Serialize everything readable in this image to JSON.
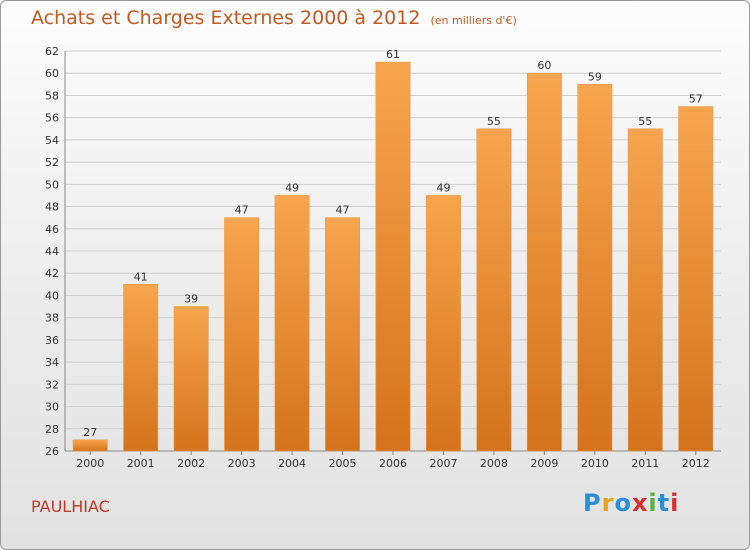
{
  "header": {
    "title": "Achats et Charges Externes 2000 à 2012",
    "unit": "(en milliers d'€)"
  },
  "footer": {
    "commune": "PAULHIAC",
    "logo_letters": [
      "P",
      "r",
      "o",
      "x",
      "i",
      "t",
      "i"
    ],
    "logo_colors": [
      "#2a8fd6",
      "#e8a21c",
      "#2a8fd6",
      "#d32f2f",
      "#57b33e",
      "#2a8fd6",
      "#d32f2f"
    ]
  },
  "colors": {
    "bar_light": "#f7a54e",
    "bar_dark": "#d4731c",
    "grid": "#d0d0d0"
  },
  "chart_data": {
    "type": "bar",
    "title": "Achats et Charges Externes 2000 à 2012",
    "categories": [
      "2000",
      "2001",
      "2002",
      "2003",
      "2004",
      "2005",
      "2006",
      "2007",
      "2008",
      "2009",
      "2010",
      "2011",
      "2012"
    ],
    "values": [
      27,
      41,
      39,
      47,
      49,
      47,
      61,
      49,
      55,
      60,
      59,
      55,
      57
    ],
    "ylim": [
      26,
      62
    ],
    "yticks": [
      26,
      28,
      30,
      32,
      34,
      36,
      38,
      40,
      42,
      44,
      46,
      48,
      50,
      52,
      54,
      56,
      58,
      60,
      62
    ],
    "grid": true,
    "data_labels": true
  }
}
